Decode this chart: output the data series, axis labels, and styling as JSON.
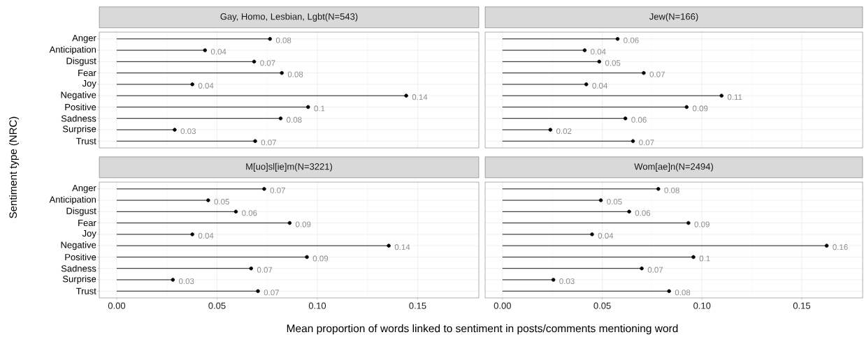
{
  "chart_data": [
    {
      "type": "lollipop",
      "orientation": "horizontal",
      "title": "Gay, Homo, Lesbian, Lgbt(N=543)",
      "ylabel": "Sentiment type (NRC)",
      "categories": [
        "Anger",
        "Anticipation",
        "Disgust",
        "Fear",
        "Joy",
        "Negative",
        "Positive",
        "Sadness",
        "Surprise",
        "Trust"
      ],
      "values": [
        0.0764,
        0.044,
        0.0685,
        0.0823,
        0.0377,
        0.1443,
        0.0954,
        0.0817,
        0.0289,
        0.069
      ],
      "value_labels": [
        "0.08",
        "0.04",
        "0.07",
        "0.08",
        "0.04",
        "0.14",
        "0.1",
        "0.08",
        "0.03",
        "0.07"
      ],
      "color": "#000000",
      "marker": "circle",
      "xlim": [
        -0.0087,
        0.1805
      ],
      "xticks": [
        {
          "value": 0,
          "label": null
        },
        {
          "value": 0.05,
          "label": null
        },
        {
          "value": 0.1,
          "label": null
        },
        {
          "value": 0.15,
          "label": null
        }
      ],
      "grid": true,
      "tick_labels": "y"
    },
    {
      "type": "lollipop",
      "orientation": "horizontal",
      "title": "Jew(N=166)",
      "categories": [
        null,
        null,
        null,
        null,
        null,
        null,
        null,
        null,
        null,
        null
      ],
      "values": [
        0.0577,
        0.0412,
        0.0485,
        0.0708,
        0.042,
        0.1098,
        0.0923,
        0.0616,
        0.024,
        0.0654
      ],
      "value_labels": [
        "0.06",
        "0.04",
        "0.05",
        "0.07",
        "0.04",
        "0.11",
        "0.09",
        "0.06",
        "0.02",
        "0.07"
      ],
      "color": "#000000",
      "marker": "circle",
      "xlim": [
        -0.0087,
        0.1805
      ],
      "xticks": [
        {
          "value": 0,
          "label": null
        },
        {
          "value": 0.05,
          "label": null
        },
        {
          "value": 0.1,
          "label": null
        },
        {
          "value": 0.15,
          "label": null
        }
      ],
      "grid": true,
      "tick_labels": false
    },
    {
      "type": "lollipop",
      "orientation": "horizontal",
      "title": "M[uo]sl[ie]m(N=3221)",
      "xlabel": "Mean proportion of words linked to sentiment in posts/comments mentioning word",
      "categories": [
        "Anger",
        "Anticipation",
        "Disgust",
        "Fear",
        "Joy",
        "Negative",
        "Positive",
        "Sadness",
        "Surprise",
        "Trust"
      ],
      "values": [
        0.0735,
        0.0456,
        0.0594,
        0.0862,
        0.0377,
        0.1356,
        0.0948,
        0.067,
        0.028,
        0.0704
      ],
      "value_labels": [
        "0.07",
        "0.05",
        "0.06",
        "0.09",
        "0.04",
        "0.14",
        "0.09",
        "0.07",
        "0.03",
        "0.07"
      ],
      "color": "#000000",
      "marker": "circle",
      "xlim": [
        -0.0087,
        0.1805
      ],
      "xticks": [
        {
          "value": 0,
          "label": "0.00"
        },
        {
          "value": 0.05,
          "label": "0.05"
        },
        {
          "value": 0.1,
          "label": "0.10"
        },
        {
          "value": 0.15,
          "label": "0.15"
        }
      ],
      "grid": true
    },
    {
      "type": "lollipop",
      "orientation": "horizontal",
      "title": "Wom[ae]n(N=2494)",
      "categories": [
        null,
        null,
        null,
        null,
        null,
        null,
        null,
        null,
        null,
        null
      ],
      "values": [
        0.0781,
        0.0493,
        0.0635,
        0.0932,
        0.0449,
        0.1625,
        0.0957,
        0.0698,
        0.0255,
        0.0835
      ],
      "value_labels": [
        "0.08",
        "0.05",
        "0.06",
        "0.09",
        "0.04",
        "0.16",
        "0.1",
        "0.07",
        "0.03",
        "0.08"
      ],
      "color": "#000000",
      "marker": "circle",
      "xlim": [
        -0.0087,
        0.1805
      ],
      "xticks": [
        {
          "value": 0,
          "label": "0.00"
        },
        {
          "value": 0.05,
          "label": "0.05"
        },
        {
          "value": 0.1,
          "label": "0.10"
        },
        {
          "value": 0.15,
          "label": "0.15"
        }
      ],
      "grid": true,
      "tick_labels": "x"
    }
  ]
}
